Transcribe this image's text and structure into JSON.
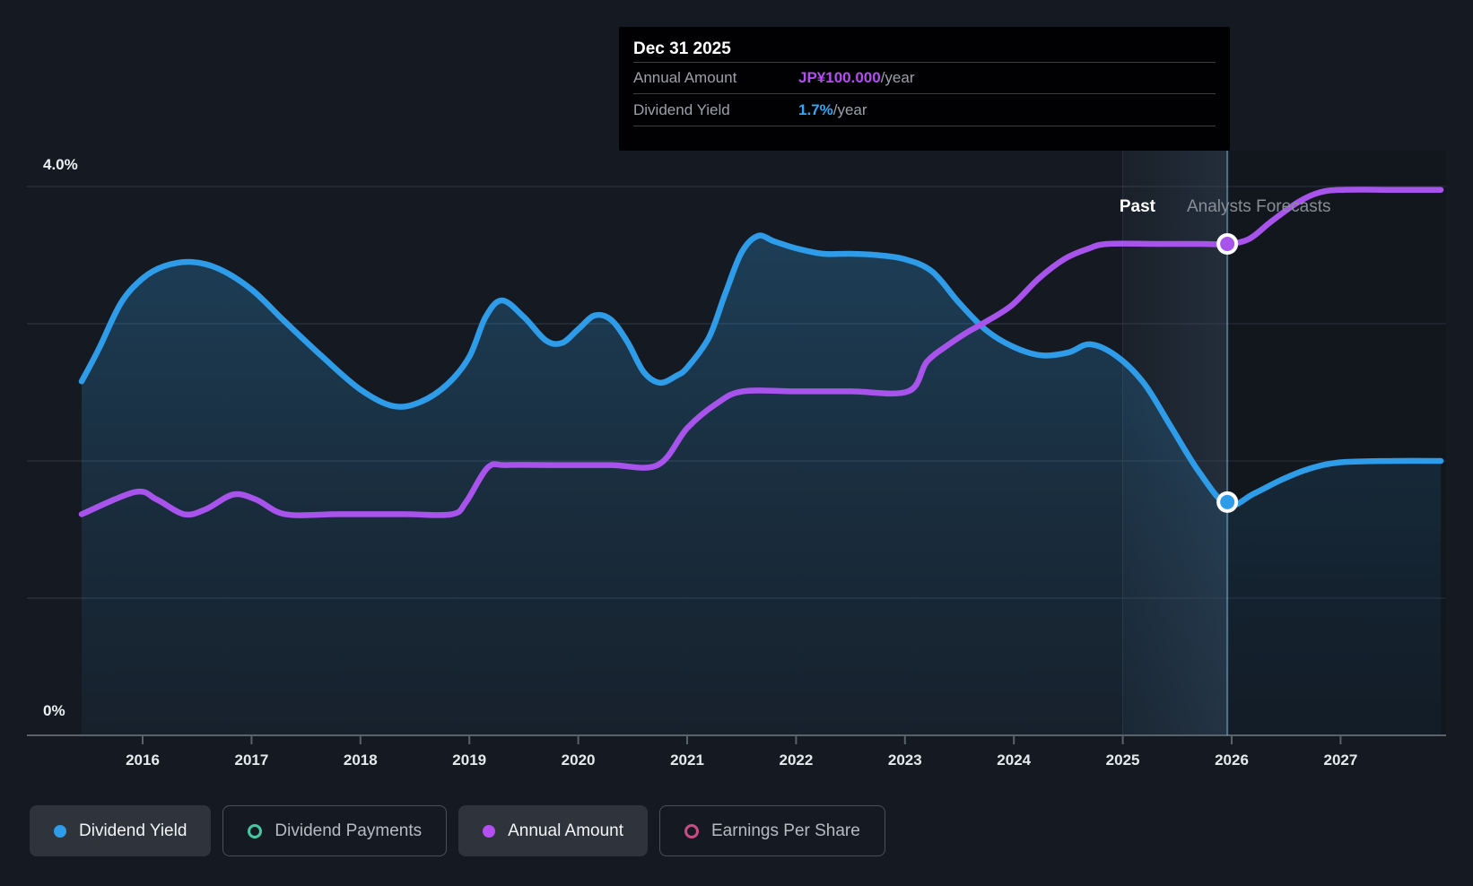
{
  "labels": {
    "past": "Past",
    "forecast": "Analysts Forecasts",
    "y_top": "4.0%",
    "y_bottom": "0%"
  },
  "tooltip": {
    "date": "Dec 31 2025",
    "rows": [
      {
        "label": "Annual Amount",
        "value": "JP¥100.000",
        "suffix": "/year",
        "color": "#b44df0"
      },
      {
        "label": "Dividend Yield",
        "value": "1.7%",
        "suffix": "/year",
        "color": "#30a7f7"
      }
    ]
  },
  "legend": [
    {
      "label": "Dividend Yield",
      "state": "active",
      "marker": "filled",
      "color": "#2e9ce8"
    },
    {
      "label": "Dividend Payments",
      "state": "inactive",
      "marker": "outline",
      "color": "#45c7a6"
    },
    {
      "label": "Annual Amount",
      "state": "active",
      "marker": "filled",
      "color": "#b44ff2"
    },
    {
      "label": "Earnings Per Share",
      "state": "inactive",
      "marker": "outline",
      "color": "#c94c86"
    }
  ],
  "colors": {
    "background": "#151a22",
    "grid": "#333b46",
    "axis": "#5a626c",
    "yield_line": "#2e9ce8",
    "amount_line": "#a854ec",
    "hover_line": "#7fb4d9",
    "marker_ring": "#ffffff"
  },
  "chart_data": {
    "type": "line",
    "title": "Dividend history and forecast",
    "x_axis_years": [
      2016,
      2017,
      2018,
      2019,
      2020,
      2021,
      2022,
      2023,
      2024,
      2025,
      2026,
      2027
    ],
    "x_range": [
      2015.44,
      2027.92
    ],
    "percent_axis": {
      "min": 0,
      "max": 4,
      "labeled_ticks": [
        "4.0%",
        "0%"
      ],
      "gridlines_pct": [
        1,
        2,
        3,
        4
      ]
    },
    "past_until": 2025.96,
    "hover_band": [
      2025.0,
      2025.96
    ],
    "legend_position": "bottom",
    "series": [
      {
        "name": "Dividend Yield",
        "axis": "percent",
        "style": "area",
        "color": "#2e9ce8",
        "points": [
          [
            2015.44,
            2.58
          ],
          [
            2015.6,
            2.82
          ],
          [
            2015.8,
            3.15
          ],
          [
            2016.0,
            3.33
          ],
          [
            2016.2,
            3.42
          ],
          [
            2016.45,
            3.45
          ],
          [
            2016.7,
            3.4
          ],
          [
            2017.0,
            3.25
          ],
          [
            2017.3,
            3.02
          ],
          [
            2017.65,
            2.76
          ],
          [
            2018.0,
            2.52
          ],
          [
            2018.3,
            2.4
          ],
          [
            2018.55,
            2.43
          ],
          [
            2018.8,
            2.56
          ],
          [
            2019.0,
            2.76
          ],
          [
            2019.15,
            3.05
          ],
          [
            2019.3,
            3.17
          ],
          [
            2019.5,
            3.05
          ],
          [
            2019.7,
            2.88
          ],
          [
            2019.85,
            2.86
          ],
          [
            2020.0,
            2.96
          ],
          [
            2020.15,
            3.06
          ],
          [
            2020.3,
            3.03
          ],
          [
            2020.45,
            2.87
          ],
          [
            2020.6,
            2.65
          ],
          [
            2020.75,
            2.57
          ],
          [
            2020.9,
            2.62
          ],
          [
            2021.0,
            2.68
          ],
          [
            2021.2,
            2.9
          ],
          [
            2021.35,
            3.22
          ],
          [
            2021.5,
            3.52
          ],
          [
            2021.65,
            3.64
          ],
          [
            2021.8,
            3.6
          ],
          [
            2022.0,
            3.55
          ],
          [
            2022.25,
            3.51
          ],
          [
            2022.5,
            3.51
          ],
          [
            2022.75,
            3.5
          ],
          [
            2023.0,
            3.47
          ],
          [
            2023.25,
            3.38
          ],
          [
            2023.5,
            3.15
          ],
          [
            2023.75,
            2.95
          ],
          [
            2024.0,
            2.83
          ],
          [
            2024.25,
            2.77
          ],
          [
            2024.5,
            2.79
          ],
          [
            2024.7,
            2.85
          ],
          [
            2024.95,
            2.76
          ],
          [
            2025.2,
            2.56
          ],
          [
            2025.45,
            2.24
          ],
          [
            2025.7,
            1.92
          ],
          [
            2025.96,
            1.68
          ],
          [
            2026.2,
            1.76
          ],
          [
            2026.45,
            1.86
          ],
          [
            2026.7,
            1.94
          ],
          [
            2027.0,
            1.99
          ],
          [
            2027.5,
            2.0
          ],
          [
            2027.92,
            2.0
          ]
        ]
      },
      {
        "name": "Annual Amount",
        "axis": "amount_jpy_estimated",
        "style": "line",
        "color": "#a854ec",
        "points": [
          [
            2015.44,
            45
          ],
          [
            2015.93,
            49.5
          ],
          [
            2016.13,
            48
          ],
          [
            2016.38,
            45
          ],
          [
            2016.58,
            46
          ],
          [
            2016.83,
            49
          ],
          [
            2017.04,
            48
          ],
          [
            2017.31,
            45
          ],
          [
            2017.8,
            45
          ],
          [
            2018.4,
            45
          ],
          [
            2018.84,
            45
          ],
          [
            2018.97,
            47.5
          ],
          [
            2019.17,
            54.5
          ],
          [
            2019.34,
            55
          ],
          [
            2019.8,
            55
          ],
          [
            2020.3,
            55
          ],
          [
            2020.73,
            55
          ],
          [
            2021.0,
            62.5
          ],
          [
            2021.27,
            67.5
          ],
          [
            2021.51,
            70
          ],
          [
            2022.0,
            70
          ],
          [
            2022.5,
            70
          ],
          [
            2023.03,
            70
          ],
          [
            2023.2,
            76
          ],
          [
            2023.4,
            79.5
          ],
          [
            2023.57,
            82
          ],
          [
            2023.73,
            84
          ],
          [
            2023.98,
            87.5
          ],
          [
            2024.23,
            93
          ],
          [
            2024.47,
            97
          ],
          [
            2024.68,
            99
          ],
          [
            2024.86,
            100
          ],
          [
            2025.3,
            100
          ],
          [
            2025.7,
            100
          ],
          [
            2025.96,
            100
          ],
          [
            2026.16,
            101
          ],
          [
            2026.36,
            104.5
          ],
          [
            2026.61,
            108.5
          ],
          [
            2026.81,
            110.5
          ],
          [
            2027.02,
            111
          ],
          [
            2027.5,
            111
          ],
          [
            2027.92,
            111
          ]
        ]
      }
    ],
    "markers": [
      {
        "series": "Annual Amount",
        "date": "Dec 31 2025",
        "x": 2025.96,
        "value": 100,
        "shown_as": "JP¥100.000/year"
      },
      {
        "series": "Dividend Yield",
        "date": "Dec 31 2025",
        "x": 2025.96,
        "value": 1.7,
        "shown_as": "1.7%/year"
      }
    ]
  }
}
